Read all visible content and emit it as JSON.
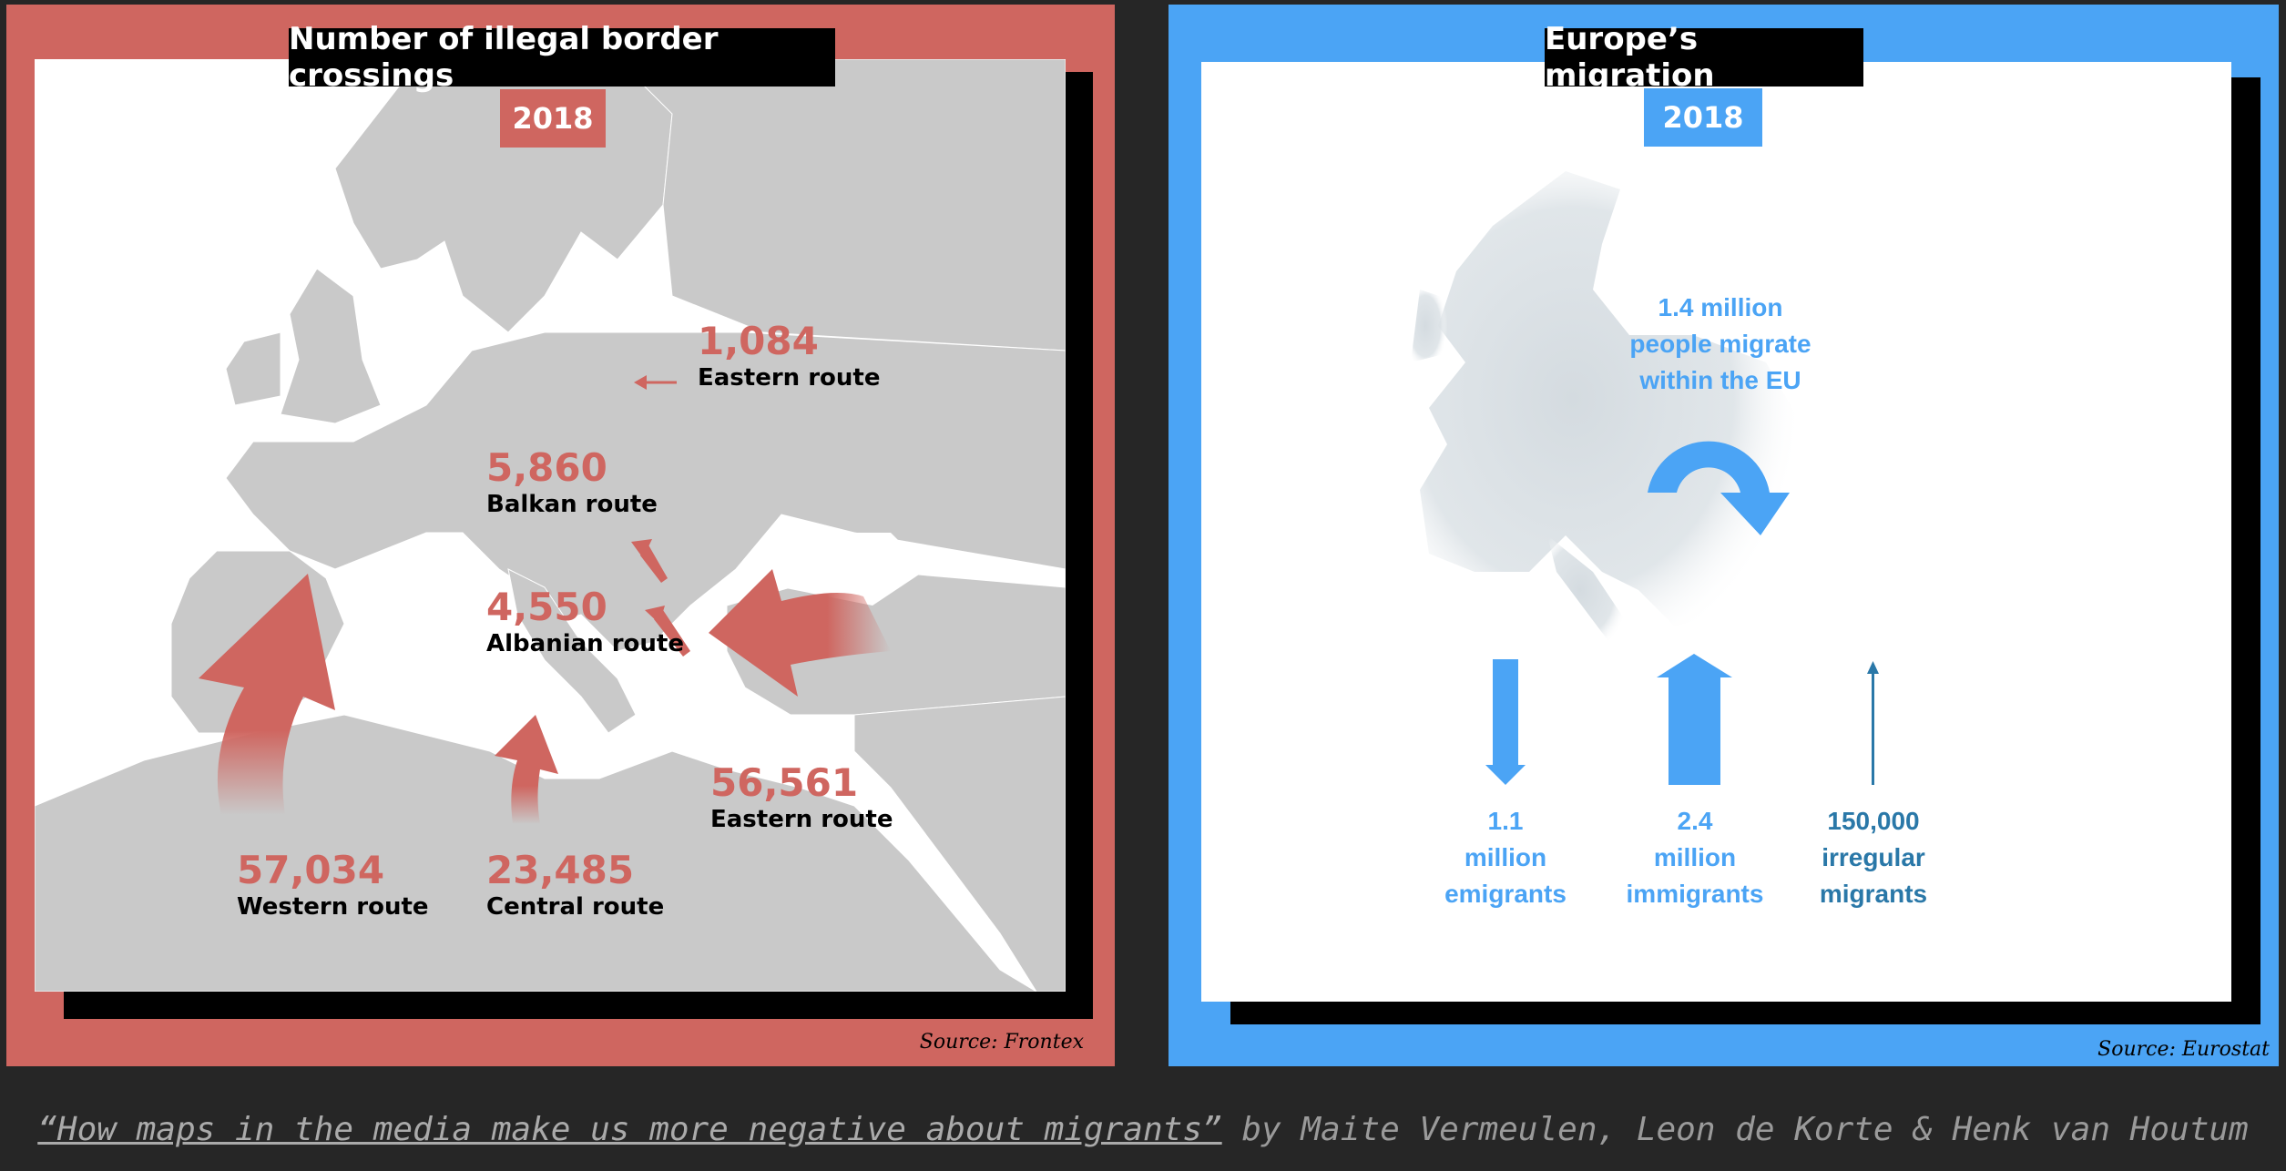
{
  "left": {
    "title": "Number of illegal border crossings",
    "year": "2018",
    "source": "Source: Frontex",
    "routes": [
      {
        "value": "1,084",
        "name": "Eastern route"
      },
      {
        "value": "5,860",
        "name": "Balkan route"
      },
      {
        "value": "4,550",
        "name": "Albanian route"
      },
      {
        "value": "56,561",
        "name": "Eastern route"
      },
      {
        "value": "57,034",
        "name": "Western route"
      },
      {
        "value": "23,485",
        "name": "Central route"
      }
    ]
  },
  "right": {
    "title": "Europe’s migration",
    "year": "2018",
    "source": "Source: Eurostat",
    "internal": {
      "line1": "1.4 million",
      "line2": "people migrate",
      "line3": "within the EU"
    },
    "flows": [
      {
        "line1": "1.1",
        "line2": "million",
        "line3": "emigrants"
      },
      {
        "line1": "2.4",
        "line2": "million",
        "line3": "immigrants"
      },
      {
        "line1": "150,000",
        "line2": "irregular",
        "line3": "migrants"
      }
    ]
  },
  "caption": {
    "link_text": "“How maps in the media make us more negative about migrants”",
    "byline": " by Maite Vermeulen, Leon de Korte & Henk van Houtum"
  },
  "colors": {
    "background": "#262626",
    "frontex_red": "#cf6660",
    "eurostat_blue": "#4ba4f5",
    "land_grey": "#c9c9c9"
  }
}
